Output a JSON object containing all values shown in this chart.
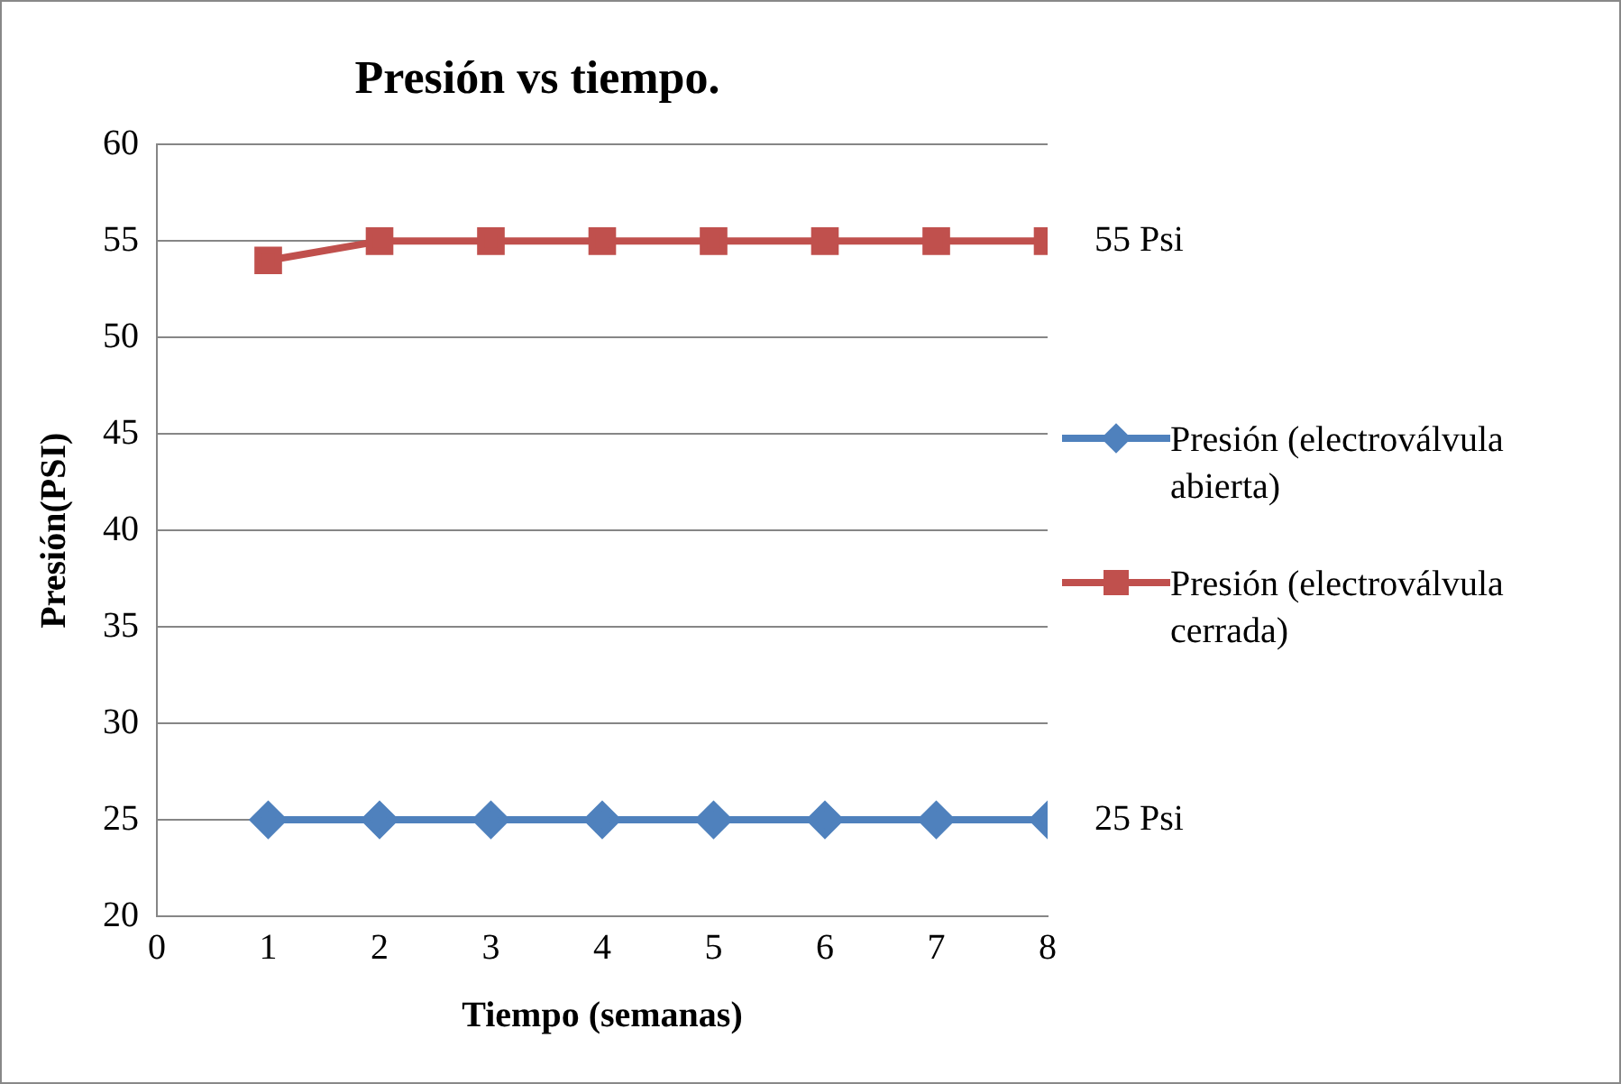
{
  "chart_data": {
    "type": "line",
    "title": "Presión vs tiempo.",
    "xlabel": "Tiempo (semanas)",
    "ylabel": "Presión(PSI)",
    "x": [
      1,
      2,
      3,
      4,
      5,
      6,
      7,
      8
    ],
    "series": [
      {
        "name": "Presión (electroválvula abierta)",
        "color": "#4f81bd",
        "marker": "diamond",
        "values": [
          25,
          25,
          25,
          25,
          25,
          25,
          25,
          25
        ]
      },
      {
        "name": "Presión (electroválvula cerrada)",
        "color": "#c0504d",
        "marker": "square",
        "values": [
          54,
          55,
          55,
          55,
          55,
          55,
          55,
          55
        ]
      }
    ],
    "xlim": [
      0,
      8
    ],
    "xticks": [
      0,
      1,
      2,
      3,
      4,
      5,
      6,
      7,
      8
    ],
    "ylim": [
      20,
      60
    ],
    "yticks": [
      20,
      25,
      30,
      35,
      40,
      45,
      50,
      55,
      60
    ],
    "grid": "y",
    "legend": "right",
    "line_style": "solid",
    "annotations": [
      {
        "text": "55 Psi",
        "x": 8,
        "y": 55
      },
      {
        "text": "25 Psi",
        "x": 8,
        "y": 25
      }
    ]
  }
}
